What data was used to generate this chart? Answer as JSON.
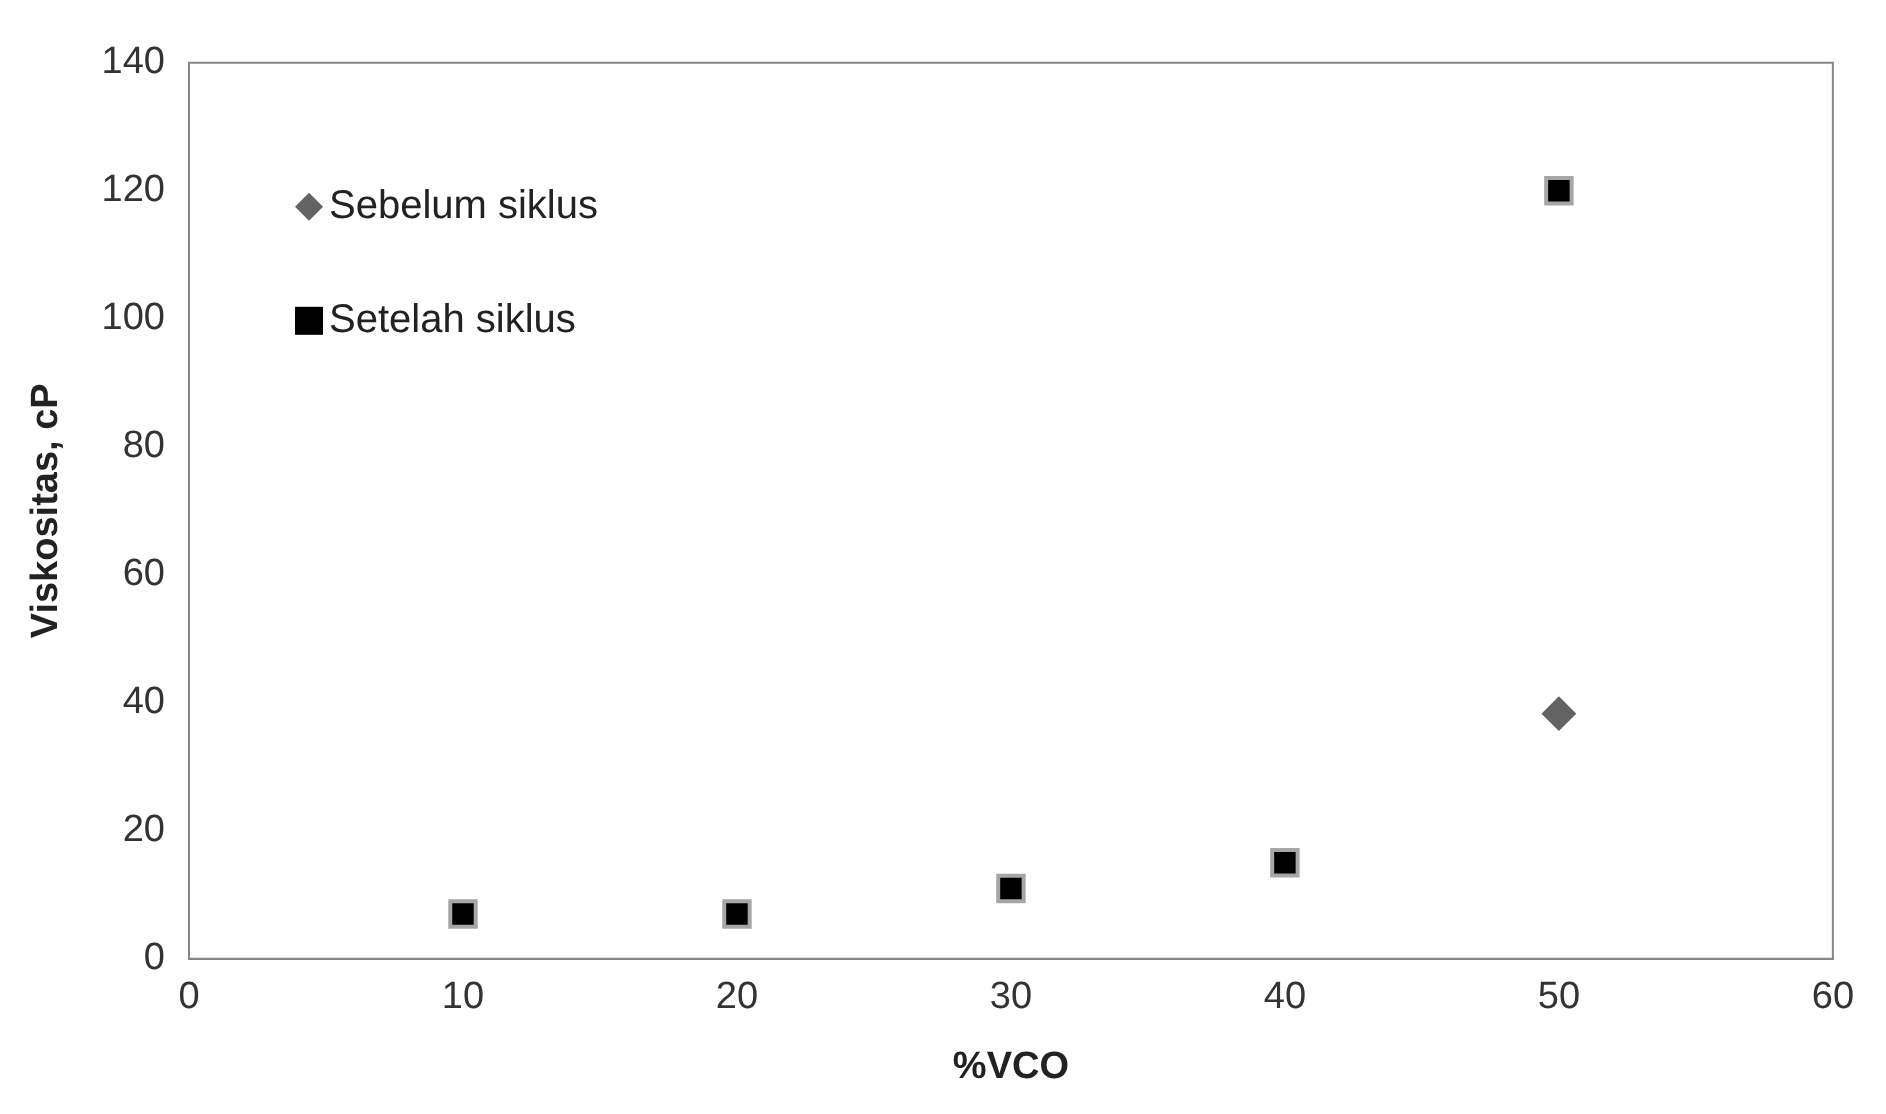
{
  "chart_data": {
    "type": "scatter",
    "xlabel": "%VCO",
    "ylabel": "Viskositas, cP",
    "xlim": [
      0,
      60
    ],
    "xticks": [
      0,
      10,
      20,
      30,
      40,
      50,
      60
    ],
    "ylim": [
      0,
      140
    ],
    "yticks": [
      0,
      20,
      40,
      60,
      80,
      100,
      120,
      140
    ],
    "grid": false,
    "legend": "top left",
    "series": [
      {
        "name": "Sebelum siklus",
        "color": "#636363",
        "marker": "diamond",
        "x": [
          50
        ],
        "values": [
          38.3
        ]
      },
      {
        "name": "Setelah siklus",
        "color": "#000000",
        "marker": "square",
        "x": [
          10,
          20,
          30,
          40,
          50
        ],
        "values": [
          7,
          7,
          11,
          15,
          120
        ]
      }
    ]
  }
}
